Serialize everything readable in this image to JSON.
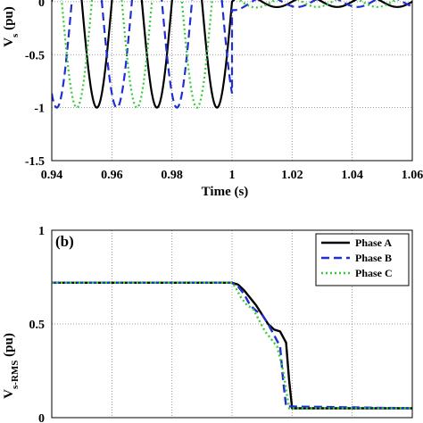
{
  "colors": {
    "phase_a": "#000000",
    "phase_b": "#1f2fd0",
    "phase_c": "#33cc33",
    "grid": "#808080",
    "frame": "#000000"
  },
  "chart_data": [
    {
      "panel": "a",
      "type": "line",
      "title": "",
      "xlabel": "Time (s)",
      "ylabel_main": "V",
      "ylabel_sub": "s",
      "ylabel_unit": " (pu)",
      "xlim": [
        0.94,
        1.06
      ],
      "ylim": [
        -1.5,
        0.1
      ],
      "x_ticks": [
        "0.94",
        "0.96",
        "0.98",
        "1",
        "1.02",
        "1.04",
        "1.06"
      ],
      "y_ticks": [
        "0",
        "-0.5",
        "-1",
        "-1.5"
      ],
      "grid": true,
      "pre_fault": {
        "frequency_hz": 50,
        "amplitude_pu": 1.0,
        "phase_shift_deg": [
          0,
          -120,
          120
        ]
      },
      "post_fault": {
        "start_time_s": 1.0,
        "amplitude_pu": 0.05,
        "frequency_hz": 50
      },
      "series": [
        {
          "name": "Phase A",
          "color": "#000000",
          "style": "solid"
        },
        {
          "name": "Phase B",
          "color": "#1f2fd0",
          "style": "dashed"
        },
        {
          "name": "Phase C",
          "color": "#33cc33",
          "style": "dotted"
        }
      ]
    },
    {
      "panel": "b",
      "panel_label": "(b)",
      "type": "line",
      "title": "",
      "xlabel": "",
      "ylabel_main": "V",
      "ylabel_sub": "s-RMS",
      "ylabel_unit": " (pu)",
      "xlim": [
        0.94,
        1.06
      ],
      "ylim": [
        0,
        1
      ],
      "y_ticks": [
        "1",
        "0.5",
        "0"
      ],
      "grid": true,
      "legend_position": "top-right",
      "series": [
        {
          "name": "Phase A",
          "color": "#000000",
          "style": "solid",
          "x": [
            0.94,
            1.0,
            1.002,
            1.004,
            1.006,
            1.008,
            1.01,
            1.012,
            1.014,
            1.016,
            1.018,
            1.019,
            1.02,
            1.06
          ],
          "y": [
            0.72,
            0.72,
            0.71,
            0.68,
            0.64,
            0.6,
            0.55,
            0.5,
            0.47,
            0.46,
            0.4,
            0.2,
            0.05,
            0.05
          ]
        },
        {
          "name": "Phase B",
          "color": "#1f2fd0",
          "style": "dashed",
          "x": [
            0.94,
            1.0,
            1.002,
            1.004,
            1.006,
            1.008,
            1.01,
            1.012,
            1.014,
            1.016,
            1.017,
            1.018,
            1.06
          ],
          "y": [
            0.72,
            0.72,
            0.7,
            0.66,
            0.6,
            0.57,
            0.55,
            0.5,
            0.44,
            0.38,
            0.2,
            0.06,
            0.05
          ]
        },
        {
          "name": "Phase C",
          "color": "#33cc33",
          "style": "dotted",
          "x": [
            0.94,
            1.0,
            1.001,
            1.003,
            1.005,
            1.007,
            1.009,
            1.011,
            1.013,
            1.015,
            1.017,
            1.019,
            1.06
          ],
          "y": [
            0.72,
            0.72,
            0.7,
            0.64,
            0.6,
            0.58,
            0.52,
            0.46,
            0.42,
            0.38,
            0.25,
            0.05,
            0.05
          ]
        }
      ]
    }
  ]
}
